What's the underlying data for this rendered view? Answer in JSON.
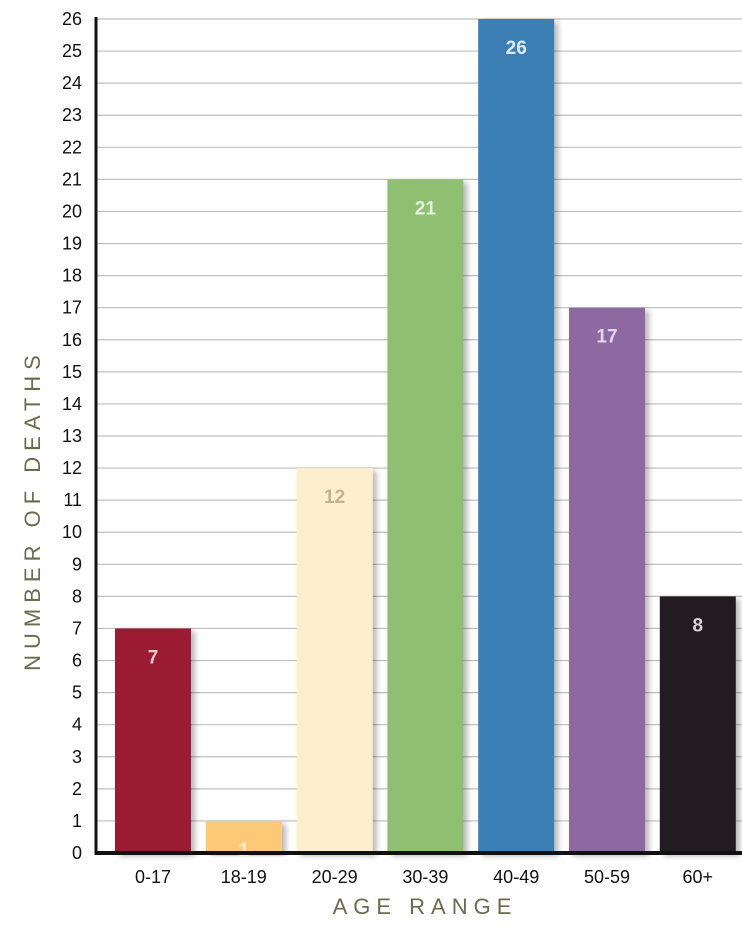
{
  "chart_data": {
    "type": "bar",
    "title": "",
    "xlabel": "AGE RANGE",
    "ylabel": "NUMBER OF DEATHS",
    "ylim": [
      0,
      26
    ],
    "yticks": [
      "0",
      "1",
      "2",
      "3",
      "4",
      "5",
      "6",
      "7",
      "8",
      "9",
      "10",
      "11",
      "12",
      "13",
      "14",
      "15",
      "16",
      "17",
      "18",
      "19",
      "20",
      "21",
      "22",
      "23",
      "24",
      "25",
      "26"
    ],
    "grid": true,
    "categories": [
      "0-17",
      "18-19",
      "20-29",
      "30-39",
      "40-49",
      "50-59",
      "60+"
    ],
    "values": [
      7,
      1,
      12,
      21,
      26,
      17,
      8
    ],
    "data_labels": [
      "7",
      "1",
      "12",
      "21",
      "26",
      "17",
      "8"
    ],
    "bar_colors": [
      "#9b1b32",
      "#fdc976",
      "#fdeecd",
      "#8fc071",
      "#3a7fb5",
      "#8e67a0",
      "#231f20"
    ],
    "label_colors": [
      "#e8c8cf",
      "#fdeecd",
      "#c2b294",
      "#e6f2dd",
      "#dde9f4",
      "#e2d7ea",
      "#d4d4d4"
    ],
    "grid_color": "#bfbfbf",
    "axis_color": "#111111",
    "axis_title_color": "#6b6b4f"
  }
}
